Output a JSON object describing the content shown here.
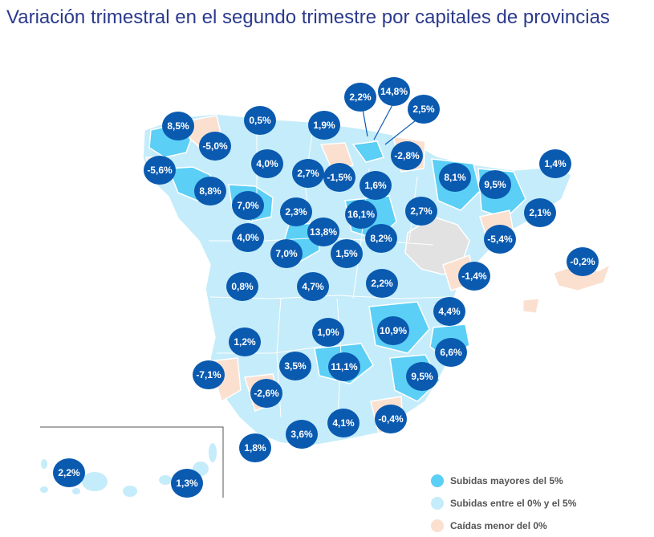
{
  "title": "Variación trimestral en el segundo trimestre por capitales de provincias",
  "colors": {
    "up_gt5": "#5bcff5",
    "up_0_5": "#c5ecfa",
    "down": "#fbe0d0",
    "no_data": "#e2e2e2",
    "bubble": "#0a5ab0",
    "border": "#ffffff"
  },
  "legend": [
    {
      "label": "Subidas mayores del 5%",
      "color_key": "up_gt5"
    },
    {
      "label": "Subidas entre el 0% y el 5%",
      "color_key": "up_0_5"
    },
    {
      "label": "Caídas menor del 0%",
      "color_key": "down"
    }
  ],
  "values": [
    "8,5%",
    "-5,0%",
    "0,5%",
    "1,9%",
    "2,2%",
    "14,8%",
    "2,5%",
    "-5,6%",
    "-2,8%",
    "4,0%",
    "8,8%",
    "2,7%",
    "-1,5%",
    "1,6%",
    "8,1%",
    "9,5%",
    "1,4%",
    "7,0%",
    "2,3%",
    "16,1%",
    "2,7%",
    "2,1%",
    "13,8%",
    "4,0%",
    "8,2%",
    "-5,4%",
    "7,0%",
    "1,5%",
    "-0,2%",
    "-1,4%",
    "0,8%",
    "4,7%",
    "2,2%",
    "4,4%",
    "1,0%",
    "10,9%",
    "1,2%",
    "6,6%",
    "3,5%",
    "11,1%",
    "-7,1%",
    "9,5%",
    "-2,6%",
    "-0,4%",
    "4,1%",
    "3,6%",
    "1,8%",
    "2,2%",
    "1,3%"
  ]
}
